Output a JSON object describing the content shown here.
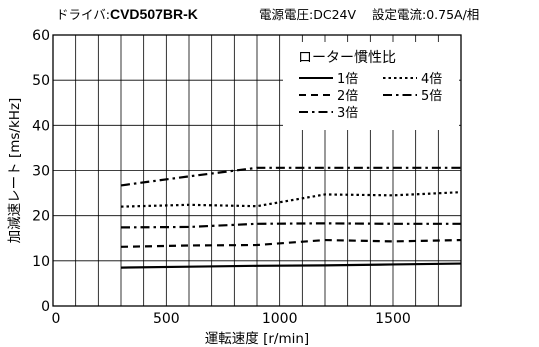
{
  "header": {
    "driver_label": "ドライバ:",
    "driver_model": "CVD507BR-K",
    "voltage": "電源電圧:DC24V",
    "current": "設定電流:0.75A/相"
  },
  "chart_data": {
    "type": "line",
    "xlabel": "運転速度 [r/min]",
    "ylabel": "加減速レート [ms/kHz]",
    "xlim": [
      0,
      1800
    ],
    "ylim": [
      0,
      60
    ],
    "xticks": [
      0,
      500,
      1000,
      1500
    ],
    "yticks": [
      0,
      10,
      20,
      30,
      40,
      50,
      60
    ],
    "grid": true,
    "legend": {
      "title": "ローター慣性比",
      "placement": "top-right",
      "entries": [
        {
          "label": "1倍",
          "style": "solid"
        },
        {
          "label": "4倍",
          "style": "dot"
        },
        {
          "label": "2倍",
          "style": "dash"
        },
        {
          "label": "5倍",
          "style": "dashdot"
        },
        {
          "label": "3倍",
          "style": "dashdot"
        }
      ]
    },
    "series": [
      {
        "name": "1倍",
        "style": "solid",
        "x": [
          300,
          600,
          900,
          1200,
          1500,
          1800
        ],
        "y": [
          8.5,
          8.7,
          8.9,
          9.0,
          9.2,
          9.4
        ]
      },
      {
        "name": "2倍",
        "style": "dash",
        "x": [
          300,
          600,
          900,
          1200,
          1500,
          1800
        ],
        "y": [
          13.1,
          13.4,
          13.5,
          14.6,
          14.3,
          14.6
        ]
      },
      {
        "name": "3倍",
        "style": "dashdot",
        "x": [
          300,
          600,
          900,
          1200,
          1500,
          1800
        ],
        "y": [
          17.4,
          17.5,
          18.2,
          18.3,
          18.2,
          18.2
        ]
      },
      {
        "name": "4倍",
        "style": "dot",
        "x": [
          300,
          600,
          900,
          1200,
          1500,
          1800
        ],
        "y": [
          22.0,
          22.4,
          22.1,
          24.7,
          24.5,
          25.2
        ]
      },
      {
        "name": "5倍",
        "style": "dashdot",
        "x": [
          300,
          600,
          900,
          1200,
          1500,
          1800
        ],
        "y": [
          26.7,
          28.7,
          30.6,
          30.6,
          30.6,
          30.6
        ]
      }
    ]
  }
}
